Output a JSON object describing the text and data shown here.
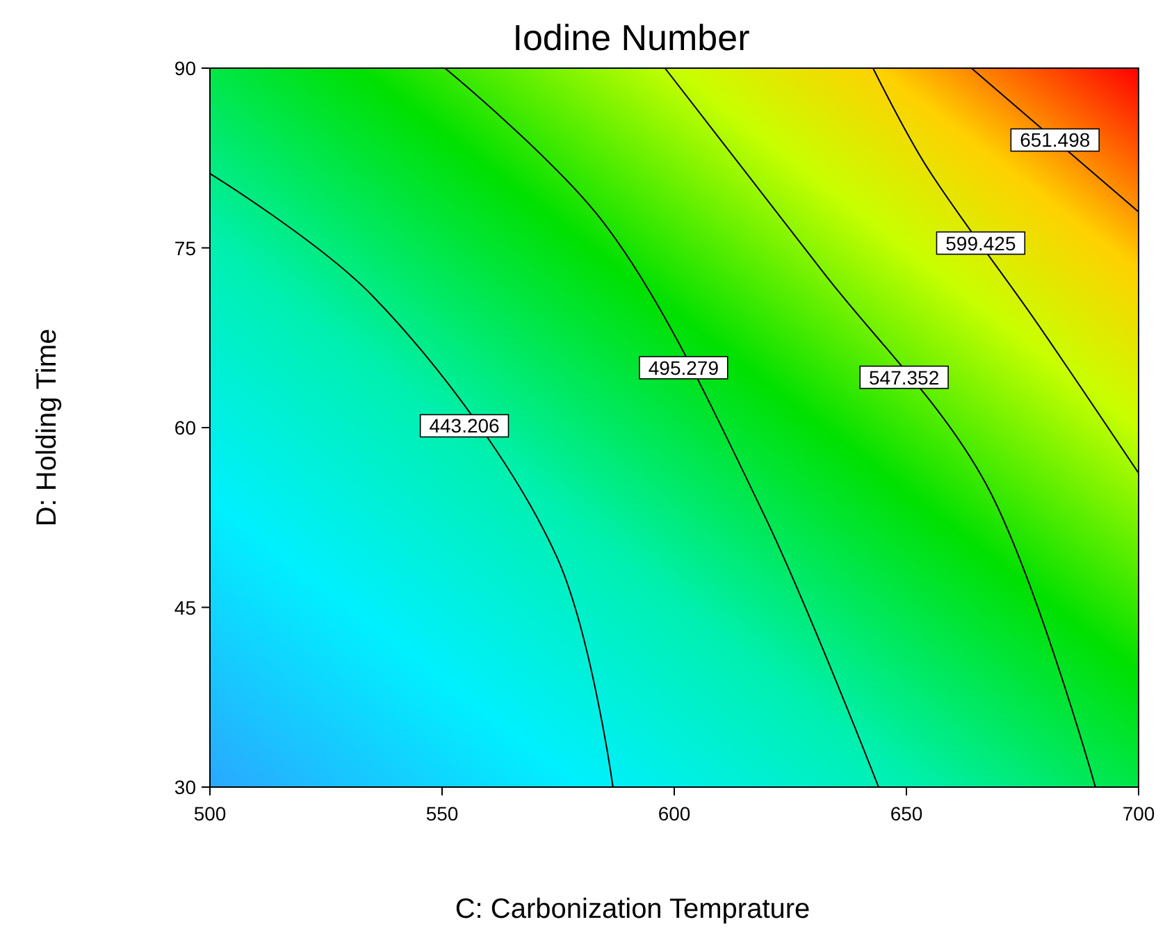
{
  "chart_data": {
    "type": "line",
    "title": "Iodine Number",
    "xlabel": "C: Carbonization Temprature",
    "ylabel": "D: Holding Time",
    "xlim": [
      500,
      700
    ],
    "ylim": [
      30,
      90
    ],
    "xticks": [
      500,
      550,
      600,
      650,
      700
    ],
    "yticks": [
      30,
      45,
      60,
      75,
      90
    ],
    "grid": false,
    "marker": "none",
    "line_style": "solid",
    "series": [
      {
        "name": "443.206",
        "color": "#000000",
        "x": [
          500,
          535,
          574.6,
          586.8
        ],
        "values": [
          81.2,
          71,
          49.3,
          30
        ]
      },
      {
        "name": "495.279",
        "color": "#000000",
        "x": [
          550.6,
          585,
          619,
          644
        ],
        "values": [
          90,
          77,
          53,
          30
        ]
      },
      {
        "name": "547.352",
        "color": "#000000",
        "x": [
          598,
          632,
          667,
          690.7
        ],
        "values": [
          90,
          73,
          55.4,
          30
        ]
      },
      {
        "name": "599.425",
        "color": "#000000",
        "x": [
          642.8,
          654,
          678,
          700
        ],
        "values": [
          90,
          82,
          68.8,
          56.2
        ]
      },
      {
        "name": "651.498",
        "color": "#000000",
        "x": [
          664,
          700
        ],
        "values": [
          90,
          78
        ]
      }
    ]
  }
}
